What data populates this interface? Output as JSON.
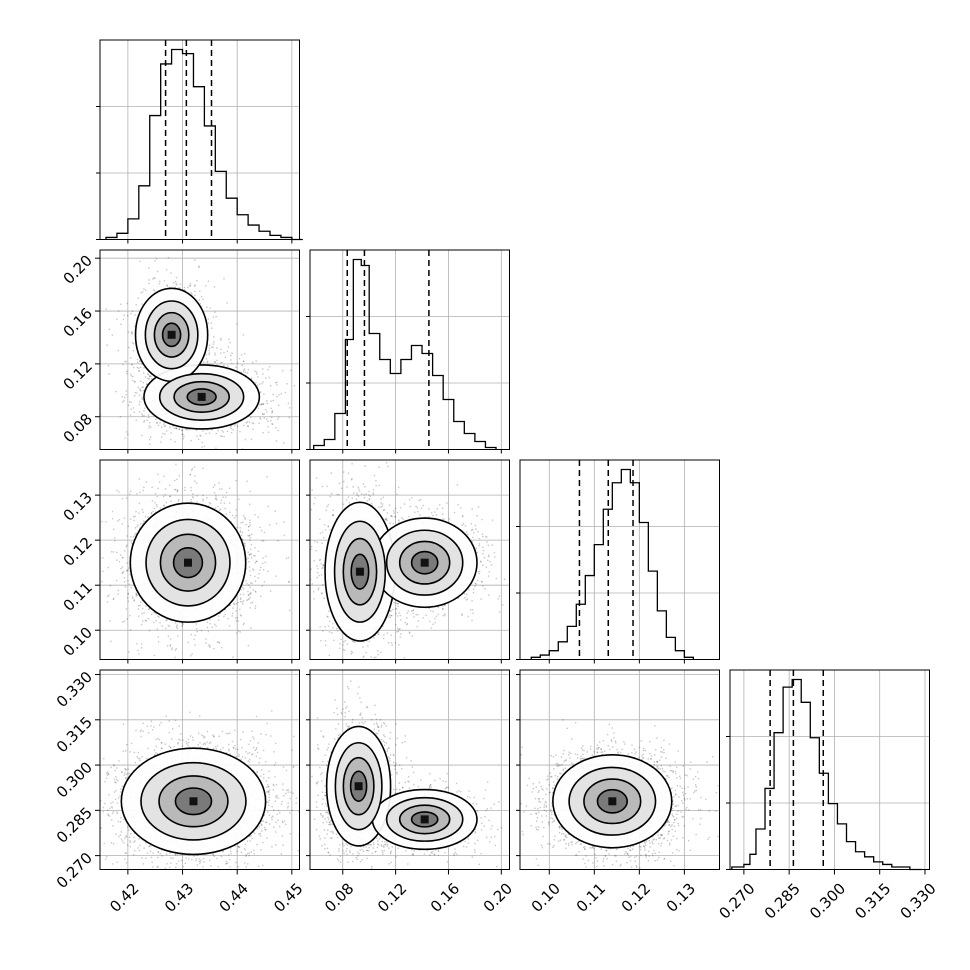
{
  "chart_data": {
    "type": "corner",
    "parameters": [
      {
        "ticks": [
          0.42,
          0.43,
          0.44,
          0.45
        ],
        "tick_labels": [
          "0.42",
          "0.43",
          "0.44",
          "0.45"
        ],
        "range": [
          0.4149,
          0.4514
        ],
        "hist": {
          "bins": [
            0.416,
            0.418,
            0.42,
            0.422,
            0.424,
            0.426,
            0.428,
            0.43,
            0.432,
            0.434,
            0.436,
            0.438,
            0.44,
            0.442,
            0.444,
            0.446,
            0.448,
            0.45
          ],
          "counts": [
            1,
            3,
            10,
            26,
            60,
            85,
            92,
            90,
            74,
            55,
            33,
            20,
            12,
            7,
            4,
            2,
            1,
            0
          ]
        },
        "quantiles": [
          0.4269,
          0.4307,
          0.4353
        ]
      },
      {
        "ticks": [
          0.08,
          0.12,
          0.16,
          0.2
        ],
        "tick_labels": [
          "0.08",
          "0.12",
          "0.16",
          "0.20"
        ],
        "range": [
          0.0552,
          0.2062
        ],
        "hist": {
          "bins": [
            0.058,
            0.066,
            0.074,
            0.082,
            0.088,
            0.094,
            0.1,
            0.108,
            0.116,
            0.124,
            0.132,
            0.14,
            0.148,
            0.156,
            0.164,
            0.172,
            0.18,
            0.188
          ],
          "counts": [
            2,
            5,
            18,
            55,
            95,
            92,
            58,
            45,
            38,
            45,
            52,
            48,
            37,
            25,
            14,
            8,
            4,
            1
          ]
        },
        "quantiles": [
          0.0834,
          0.0964,
          0.1452
        ]
      },
      {
        "ticks": [
          0.1,
          0.11,
          0.12,
          0.13
        ],
        "tick_labels": [
          "0.10",
          "0.11",
          "0.12",
          "0.13"
        ],
        "range": [
          0.0935,
          0.1378
        ],
        "hist": {
          "bins": [
            0.096,
            0.098,
            0.1,
            0.102,
            0.104,
            0.106,
            0.108,
            0.11,
            0.112,
            0.114,
            0.116,
            0.118,
            0.12,
            0.122,
            0.124,
            0.126,
            0.128,
            0.13
          ],
          "counts": [
            1,
            2,
            4,
            8,
            15,
            25,
            38,
            52,
            68,
            80,
            86,
            80,
            62,
            40,
            22,
            10,
            4,
            1
          ]
        },
        "quantiles": [
          0.1067,
          0.1131,
          0.1186
        ]
      },
      {
        "ticks": [
          0.27,
          0.285,
          0.3,
          0.315,
          0.33
        ],
        "tick_labels": [
          "0.270",
          "0.285",
          "0.300",
          "0.315",
          "0.330"
        ],
        "range": [
          0.2654,
          0.3315
        ],
        "hist": {
          "bins": [
            0.266,
            0.27,
            0.272,
            0.274,
            0.277,
            0.28,
            0.283,
            0.286,
            0.289,
            0.292,
            0.295,
            0.298,
            0.301,
            0.304,
            0.307,
            0.31,
            0.313,
            0.316,
            0.319,
            0.322,
            0.325
          ],
          "counts": [
            1,
            2,
            6,
            16,
            32,
            54,
            72,
            75,
            66,
            52,
            38,
            26,
            18,
            11,
            7,
            5,
            3,
            2,
            1,
            1,
            0
          ]
        },
        "quantiles": [
          0.2787,
          0.2864,
          0.2963
        ]
      }
    ],
    "pairs": [
      {
        "row": 1,
        "col": 0,
        "modes": [
          {
            "x": 0.4335,
            "y": 0.095,
            "sx": 0.0048,
            "sy": 0.011,
            "w": 0.58
          },
          {
            "x": 0.428,
            "y": 0.142,
            "sx": 0.003,
            "sy": 0.016,
            "w": 0.42
          }
        ]
      },
      {
        "row": 2,
        "col": 0,
        "modes": [
          {
            "x": 0.431,
            "y": 0.115,
            "sx": 0.0048,
            "sy": 0.006,
            "w": 1.0
          }
        ]
      },
      {
        "row": 2,
        "col": 1,
        "modes": [
          {
            "x": 0.093,
            "y": 0.113,
            "sx": 0.012,
            "sy": 0.007,
            "w": 0.58
          },
          {
            "x": 0.142,
            "y": 0.115,
            "sx": 0.018,
            "sy": 0.0045,
            "w": 0.42
          }
        ]
      },
      {
        "row": 3,
        "col": 0,
        "modes": [
          {
            "x": 0.432,
            "y": 0.288,
            "sx": 0.006,
            "sy": 0.008,
            "w": 1.0
          }
        ]
      },
      {
        "row": 3,
        "col": 1,
        "modes": [
          {
            "x": 0.092,
            "y": 0.293,
            "sx": 0.011,
            "sy": 0.009,
            "w": 0.58
          },
          {
            "x": 0.142,
            "y": 0.282,
            "sx": 0.018,
            "sy": 0.0045,
            "w": 0.42
          }
        ]
      },
      {
        "row": 3,
        "col": 2,
        "modes": [
          {
            "x": 0.114,
            "y": 0.288,
            "sx": 0.006,
            "sy": 0.007,
            "w": 1.0
          }
        ]
      }
    ],
    "grid": true,
    "style": {
      "hist_color": "#000000",
      "contour_color": "#000000",
      "points_color": "#000000",
      "grid_color": "#b0b0b0"
    }
  }
}
